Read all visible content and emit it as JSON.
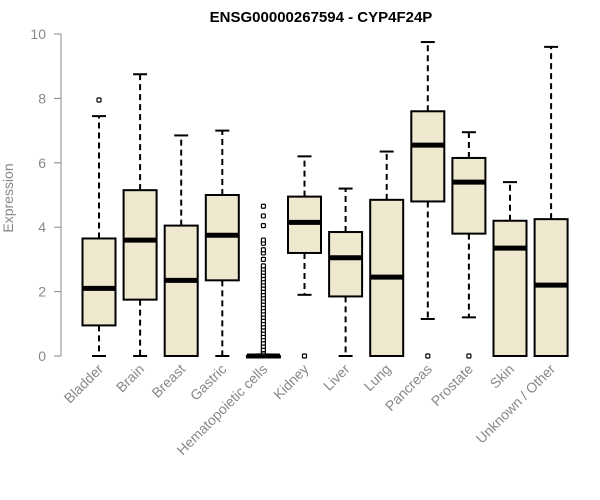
{
  "chart_data": {
    "type": "box",
    "title": "ENSG00000267594 - CYP4F24P",
    "xlabel": "",
    "ylabel": "Expression",
    "ylim": [
      0,
      10
    ],
    "yticks": [
      "0",
      "2",
      "4",
      "6",
      "8",
      "10"
    ],
    "grid": false,
    "colors": {
      "box_fill": "#eee8cf",
      "stroke": "#000000",
      "axis_text": "#888888"
    },
    "categories": [
      "Bladder",
      "Brain",
      "Breast",
      "Gastric",
      "Hematopoietic cells",
      "Kidney",
      "Liver",
      "Lung",
      "Pancreas",
      "Prostate",
      "Skin",
      "Unknown / Other"
    ],
    "boxes": [
      {
        "q1": 0.95,
        "median": 2.1,
        "q3": 3.65,
        "whisker_low": 0.0,
        "whisker_high": 7.45,
        "outliers": [
          7.95
        ]
      },
      {
        "q1": 1.75,
        "median": 3.6,
        "q3": 5.15,
        "whisker_low": 0.0,
        "whisker_high": 8.75,
        "outliers": []
      },
      {
        "q1": 0.0,
        "median": 2.35,
        "q3": 4.05,
        "whisker_low": 0.0,
        "whisker_high": 6.85,
        "outliers": []
      },
      {
        "q1": 2.35,
        "median": 3.75,
        "q3": 5.0,
        "whisker_low": 0.0,
        "whisker_high": 7.0,
        "outliers": []
      },
      {
        "q1": 0.0,
        "median": 0.0,
        "q3": 0.0,
        "whisker_low": 0.0,
        "whisker_high": 0.05,
        "outliers": [
          0.1,
          0.15,
          0.2,
          0.3,
          0.4,
          0.5,
          0.6,
          0.7,
          0.8,
          0.9,
          1.0,
          1.1,
          1.2,
          1.3,
          1.4,
          1.5,
          1.6,
          1.7,
          1.8,
          1.9,
          2.0,
          2.1,
          2.2,
          2.3,
          2.4,
          2.5,
          2.6,
          2.7,
          2.8,
          3.0,
          3.2,
          3.3,
          3.5,
          3.6,
          4.05,
          4.35,
          4.65
        ]
      },
      {
        "q1": 3.2,
        "median": 4.15,
        "q3": 4.95,
        "whisker_low": 1.9,
        "whisker_high": 6.2,
        "outliers": [
          0.0
        ]
      },
      {
        "q1": 1.85,
        "median": 3.05,
        "q3": 3.85,
        "whisker_low": 0.0,
        "whisker_high": 5.2,
        "outliers": []
      },
      {
        "q1": 0.0,
        "median": 2.45,
        "q3": 4.85,
        "whisker_low": 0.0,
        "whisker_high": 6.35,
        "outliers": []
      },
      {
        "q1": 4.8,
        "median": 6.55,
        "q3": 7.6,
        "whisker_low": 1.15,
        "whisker_high": 9.75,
        "outliers": [
          0.0
        ]
      },
      {
        "q1": 3.8,
        "median": 5.4,
        "q3": 6.15,
        "whisker_low": 1.2,
        "whisker_high": 6.95,
        "outliers": [
          0.0
        ]
      },
      {
        "q1": 0.0,
        "median": 3.35,
        "q3": 4.2,
        "whisker_low": 0.0,
        "whisker_high": 5.4,
        "outliers": []
      },
      {
        "q1": 0.0,
        "median": 2.2,
        "q3": 4.25,
        "whisker_low": 0.0,
        "whisker_high": 9.6,
        "outliers": []
      }
    ]
  }
}
